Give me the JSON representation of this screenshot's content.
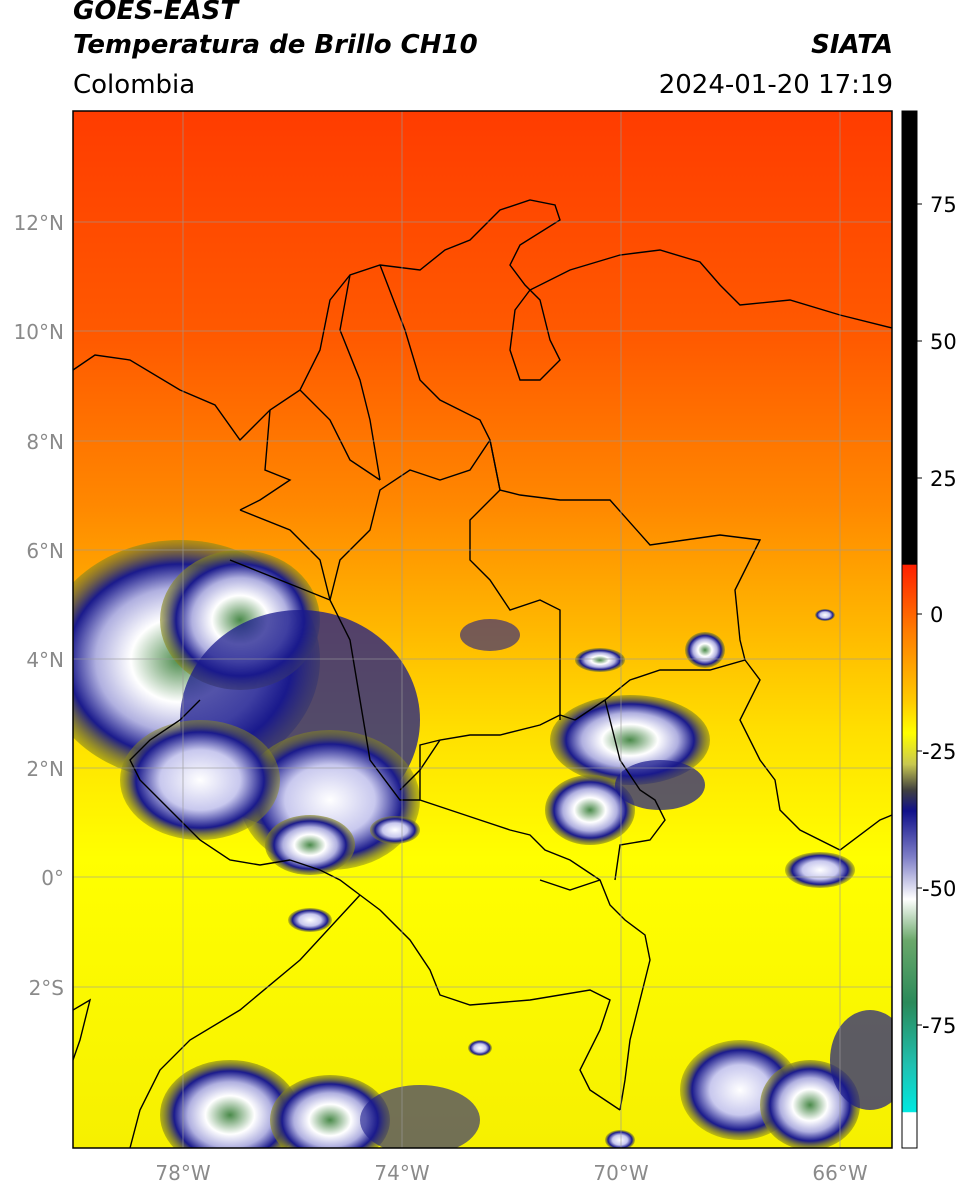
{
  "header": {
    "satellite": "GOES-EAST",
    "product": "Temperatura de Brillo CH10",
    "region": "Colombia",
    "agency": "SIATA",
    "timestamp": "2024-01-20 17:19"
  },
  "axes": {
    "lat_ticks": [
      "12°N",
      "10°N",
      "8°N",
      "6°N",
      "4°N",
      "2°N",
      "0°",
      "2°S"
    ],
    "lon_ticks": [
      "78°W",
      "74°W",
      "70°W",
      "66°W"
    ]
  },
  "colorbar": {
    "ticks": [
      "75",
      "50",
      "25",
      "0",
      "-25",
      "-50",
      "-75"
    ]
  },
  "colors": {
    "warm_red": "#ff4a00",
    "orange": "#ff9a00",
    "yellow": "#ffff00",
    "olive": "#8a8a1a",
    "navy": "#1a1a8c",
    "white": "#ffffff",
    "green": "#3a8a3a",
    "cyan": "#00e0d8"
  }
}
